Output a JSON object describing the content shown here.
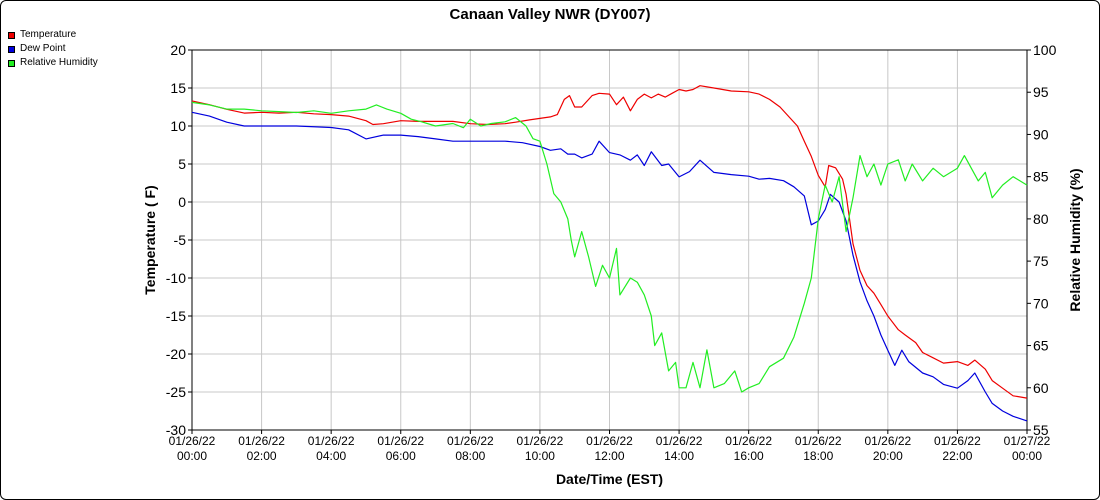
{
  "chart_data": {
    "type": "line",
    "title": "Canaan Valley NWR (DY007)",
    "xlabel": "Date/Time (EST)",
    "ylabel_left": "Temperature ( F)",
    "ylabel_right": "Relative Humidity (%)",
    "x_hours_range": [
      0,
      24
    ],
    "x_ticks": [
      {
        "hour": 0,
        "date": "01/26/22",
        "time": "00:00"
      },
      {
        "hour": 2,
        "date": "01/26/22",
        "time": "02:00"
      },
      {
        "hour": 4,
        "date": "01/26/22",
        "time": "04:00"
      },
      {
        "hour": 6,
        "date": "01/26/22",
        "time": "06:00"
      },
      {
        "hour": 8,
        "date": "01/26/22",
        "time": "08:00"
      },
      {
        "hour": 10,
        "date": "01/26/22",
        "time": "10:00"
      },
      {
        "hour": 12,
        "date": "01/26/22",
        "time": "12:00"
      },
      {
        "hour": 14,
        "date": "01/26/22",
        "time": "14:00"
      },
      {
        "hour": 16,
        "date": "01/26/22",
        "time": "16:00"
      },
      {
        "hour": 18,
        "date": "01/26/22",
        "time": "18:00"
      },
      {
        "hour": 20,
        "date": "01/26/22",
        "time": "20:00"
      },
      {
        "hour": 22,
        "date": "01/26/22",
        "time": "22:00"
      },
      {
        "hour": 24,
        "date": "01/27/22",
        "time": "00:00"
      }
    ],
    "y_left_range": [
      -30,
      20
    ],
    "y_left_ticks": [
      20,
      15,
      10,
      5,
      0,
      -5,
      -10,
      -15,
      -20,
      -25,
      -30
    ],
    "y_right_range": [
      55,
      100
    ],
    "y_right_ticks": [
      100,
      95,
      90,
      85,
      80,
      75,
      70,
      65,
      60,
      55
    ],
    "grid": true,
    "legend_position": "top-left",
    "series": [
      {
        "name": "Temperature",
        "axis": "left",
        "color": "#ee0000",
        "points": [
          [
            0,
            13.3
          ],
          [
            0.5,
            12.8
          ],
          [
            1,
            12.2
          ],
          [
            1.5,
            11.7
          ],
          [
            2,
            11.8
          ],
          [
            2.5,
            11.7
          ],
          [
            3,
            11.8
          ],
          [
            3.5,
            11.6
          ],
          [
            4,
            11.5
          ],
          [
            4.5,
            11.3
          ],
          [
            5,
            10.7
          ],
          [
            5.2,
            10.2
          ],
          [
            5.5,
            10.3
          ],
          [
            6,
            10.7
          ],
          [
            6.5,
            10.6
          ],
          [
            7,
            10.6
          ],
          [
            7.5,
            10.6
          ],
          [
            8,
            10.3
          ],
          [
            8.5,
            10.2
          ],
          [
            9,
            10.3
          ],
          [
            9.3,
            10.5
          ],
          [
            9.7,
            10.8
          ],
          [
            10,
            11.0
          ],
          [
            10.3,
            11.2
          ],
          [
            10.5,
            11.5
          ],
          [
            10.7,
            13.5
          ],
          [
            10.85,
            14.0
          ],
          [
            11,
            12.5
          ],
          [
            11.2,
            12.5
          ],
          [
            11.5,
            14.0
          ],
          [
            11.7,
            14.3
          ],
          [
            12,
            14.2
          ],
          [
            12.2,
            12.8
          ],
          [
            12.4,
            13.8
          ],
          [
            12.6,
            12.0
          ],
          [
            12.8,
            13.5
          ],
          [
            13,
            14.2
          ],
          [
            13.2,
            13.7
          ],
          [
            13.4,
            14.2
          ],
          [
            13.6,
            13.8
          ],
          [
            13.8,
            14.3
          ],
          [
            14,
            14.8
          ],
          [
            14.2,
            14.6
          ],
          [
            14.4,
            14.8
          ],
          [
            14.6,
            15.3
          ],
          [
            15,
            15.0
          ],
          [
            15.5,
            14.6
          ],
          [
            16,
            14.5
          ],
          [
            16.3,
            14.2
          ],
          [
            16.6,
            13.5
          ],
          [
            16.9,
            12.5
          ],
          [
            17.2,
            11.0
          ],
          [
            17.4,
            10.0
          ],
          [
            17.6,
            8.0
          ],
          [
            17.8,
            6.0
          ],
          [
            18,
            3.5
          ],
          [
            18.2,
            2.0
          ],
          [
            18.3,
            4.8
          ],
          [
            18.5,
            4.5
          ],
          [
            18.7,
            3.0
          ],
          [
            18.8,
            1.0
          ],
          [
            19,
            -5.5
          ],
          [
            19.2,
            -9.0
          ],
          [
            19.4,
            -11.0
          ],
          [
            19.6,
            -12.0
          ],
          [
            19.8,
            -13.5
          ],
          [
            20,
            -15.0
          ],
          [
            20.3,
            -16.8
          ],
          [
            20.5,
            -17.5
          ],
          [
            20.8,
            -18.5
          ],
          [
            21,
            -19.8
          ],
          [
            21.3,
            -20.5
          ],
          [
            21.6,
            -21.2
          ],
          [
            22,
            -21.0
          ],
          [
            22.3,
            -21.5
          ],
          [
            22.5,
            -20.8
          ],
          [
            22.8,
            -22.0
          ],
          [
            23,
            -23.5
          ],
          [
            23.3,
            -24.5
          ],
          [
            23.6,
            -25.5
          ],
          [
            24,
            -25.8
          ]
        ]
      },
      {
        "name": "Dew Point",
        "axis": "left",
        "color": "#0000dd",
        "points": [
          [
            0,
            11.8
          ],
          [
            0.5,
            11.3
          ],
          [
            1,
            10.5
          ],
          [
            1.5,
            10.0
          ],
          [
            2,
            10.0
          ],
          [
            3,
            10.0
          ],
          [
            4,
            9.8
          ],
          [
            4.5,
            9.5
          ],
          [
            5,
            8.3
          ],
          [
            5.5,
            8.8
          ],
          [
            6,
            8.8
          ],
          [
            6.5,
            8.6
          ],
          [
            7,
            8.3
          ],
          [
            7.5,
            8.0
          ],
          [
            8,
            8.0
          ],
          [
            8.5,
            8.0
          ],
          [
            9,
            8.0
          ],
          [
            9.5,
            7.8
          ],
          [
            10,
            7.3
          ],
          [
            10.3,
            6.8
          ],
          [
            10.6,
            7.0
          ],
          [
            10.8,
            6.3
          ],
          [
            11,
            6.3
          ],
          [
            11.2,
            5.8
          ],
          [
            11.5,
            6.3
          ],
          [
            11.7,
            8.0
          ],
          [
            12,
            6.5
          ],
          [
            12.3,
            6.2
          ],
          [
            12.6,
            5.5
          ],
          [
            12.8,
            6.2
          ],
          [
            13,
            4.8
          ],
          [
            13.2,
            6.6
          ],
          [
            13.5,
            4.8
          ],
          [
            13.7,
            5.0
          ],
          [
            14,
            3.3
          ],
          [
            14.3,
            4.0
          ],
          [
            14.6,
            5.5
          ],
          [
            15,
            3.9
          ],
          [
            15.5,
            3.6
          ],
          [
            16,
            3.4
          ],
          [
            16.3,
            3.0
          ],
          [
            16.6,
            3.1
          ],
          [
            17,
            2.8
          ],
          [
            17.3,
            2.0
          ],
          [
            17.6,
            0.8
          ],
          [
            17.8,
            -3.0
          ],
          [
            18,
            -2.5
          ],
          [
            18.2,
            -1.0
          ],
          [
            18.35,
            1.0
          ],
          [
            18.6,
            0.0
          ],
          [
            18.8,
            -2.5
          ],
          [
            19,
            -7.0
          ],
          [
            19.2,
            -10.5
          ],
          [
            19.4,
            -13.0
          ],
          [
            19.6,
            -15.0
          ],
          [
            19.8,
            -17.5
          ],
          [
            20,
            -19.5
          ],
          [
            20.2,
            -21.5
          ],
          [
            20.4,
            -19.5
          ],
          [
            20.6,
            -21.0
          ],
          [
            21,
            -22.5
          ],
          [
            21.3,
            -23.0
          ],
          [
            21.6,
            -24.0
          ],
          [
            22,
            -24.5
          ],
          [
            22.3,
            -23.5
          ],
          [
            22.5,
            -22.5
          ],
          [
            22.8,
            -25.0
          ],
          [
            23,
            -26.5
          ],
          [
            23.3,
            -27.5
          ],
          [
            23.6,
            -28.2
          ],
          [
            24,
            -28.8
          ]
        ]
      },
      {
        "name": "Relative Humidity",
        "axis": "right",
        "color": "#22ee22",
        "points": [
          [
            0,
            93.8
          ],
          [
            0.5,
            93.5
          ],
          [
            1,
            93.0
          ],
          [
            1.5,
            93.0
          ],
          [
            2,
            92.8
          ],
          [
            2.5,
            92.7
          ],
          [
            3,
            92.6
          ],
          [
            3.5,
            92.8
          ],
          [
            4,
            92.5
          ],
          [
            4.5,
            92.8
          ],
          [
            5,
            93.0
          ],
          [
            5.3,
            93.5
          ],
          [
            5.6,
            93.0
          ],
          [
            6,
            92.5
          ],
          [
            6.3,
            91.8
          ],
          [
            6.6,
            91.5
          ],
          [
            7,
            91.0
          ],
          [
            7.5,
            91.3
          ],
          [
            7.8,
            90.8
          ],
          [
            8,
            91.8
          ],
          [
            8.3,
            91.0
          ],
          [
            8.6,
            91.3
          ],
          [
            9,
            91.5
          ],
          [
            9.3,
            92.0
          ],
          [
            9.6,
            91.0
          ],
          [
            9.8,
            89.5
          ],
          [
            10,
            89.2
          ],
          [
            10.2,
            86.5
          ],
          [
            10.4,
            83.0
          ],
          [
            10.6,
            82.0
          ],
          [
            10.8,
            80.0
          ],
          [
            10.9,
            77.5
          ],
          [
            11,
            75.5
          ],
          [
            11.2,
            78.5
          ],
          [
            11.4,
            75.5
          ],
          [
            11.6,
            72.0
          ],
          [
            11.8,
            74.5
          ],
          [
            12,
            73.0
          ],
          [
            12.2,
            76.5
          ],
          [
            12.3,
            71.0
          ],
          [
            12.6,
            73.0
          ],
          [
            12.8,
            72.5
          ],
          [
            13,
            71.0
          ],
          [
            13.2,
            68.5
          ],
          [
            13.3,
            65.0
          ],
          [
            13.5,
            66.5
          ],
          [
            13.7,
            62.0
          ],
          [
            13.9,
            63.0
          ],
          [
            14,
            60.0
          ],
          [
            14.2,
            60.0
          ],
          [
            14.4,
            63.0
          ],
          [
            14.6,
            60.0
          ],
          [
            14.8,
            64.5
          ],
          [
            15,
            60.0
          ],
          [
            15.3,
            60.5
          ],
          [
            15.6,
            62.0
          ],
          [
            15.8,
            59.5
          ],
          [
            16,
            60.0
          ],
          [
            16.3,
            60.5
          ],
          [
            16.6,
            62.5
          ],
          [
            17,
            63.5
          ],
          [
            17.3,
            66.0
          ],
          [
            17.6,
            70.0
          ],
          [
            17.8,
            73.0
          ],
          [
            18,
            80.0
          ],
          [
            18.2,
            84.0
          ],
          [
            18.4,
            82.0
          ],
          [
            18.6,
            85.0
          ],
          [
            18.8,
            78.5
          ],
          [
            19,
            82.5
          ],
          [
            19.2,
            87.5
          ],
          [
            19.4,
            85.0
          ],
          [
            19.6,
            86.5
          ],
          [
            19.8,
            84.0
          ],
          [
            20,
            86.5
          ],
          [
            20.3,
            87.0
          ],
          [
            20.5,
            84.5
          ],
          [
            20.7,
            86.5
          ],
          [
            21,
            84.5
          ],
          [
            21.3,
            86.0
          ],
          [
            21.6,
            85.0
          ],
          [
            22,
            86.0
          ],
          [
            22.2,
            87.5
          ],
          [
            22.4,
            86.0
          ],
          [
            22.6,
            84.5
          ],
          [
            22.8,
            85.5
          ],
          [
            23,
            82.5
          ],
          [
            23.3,
            84.0
          ],
          [
            23.6,
            85.0
          ],
          [
            24,
            84.0
          ]
        ]
      }
    ]
  }
}
